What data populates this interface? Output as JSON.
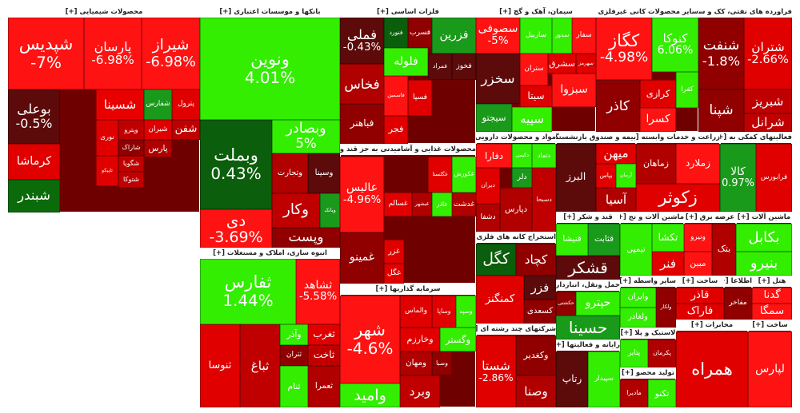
{
  "sectors": [
    {
      "title": "محصولات شیمیایی [+]",
      "tiles": [
        {
          "name": "شپدیس",
          "change": "-7%",
          "color": "#ff1212"
        },
        {
          "name": "پارسان",
          "change": "-6.98%",
          "color": "#ff1212"
        },
        {
          "name": "شیراز",
          "change": "-6.98%",
          "color": "#ff1212"
        },
        {
          "name": "بوعلی",
          "change": "-0.5%",
          "color": "#5c0a0a"
        },
        {
          "name": "کرماشا",
          "color": "#e00000"
        },
        {
          "name": "شبندر",
          "color": "#0b6b0b"
        },
        {
          "name": "شسینا",
          "color": "#e80000"
        },
        {
          "name": "شفارس",
          "color": "#1a9a1a"
        },
        {
          "name": "پترول",
          "color": "#e00000"
        },
        {
          "name": "نوری",
          "color": "#e00000"
        },
        {
          "name": "وپترو",
          "color": "#c00000"
        },
        {
          "name": "شیران",
          "color": "#e00000"
        },
        {
          "name": "شفن",
          "color": "#c00000"
        },
        {
          "name": "شاراک",
          "color": "#900000"
        },
        {
          "name": "پارس",
          "color": "#b00000"
        },
        {
          "name": "تاپیکو",
          "color": "#e00000"
        },
        {
          "name": "شگویا",
          "color": "#c00000"
        },
        {
          "name": "شتوکا",
          "color": "#c00000"
        }
      ]
    },
    {
      "title": "بانکها و موسسات اعتباری [+]",
      "tiles": [
        {
          "name": "ونوین",
          "change": "4.01%",
          "color": "#33ee00"
        },
        {
          "name": "وبملت",
          "change": "0.43%",
          "color": "#0b5e0b"
        },
        {
          "name": "وبصادر",
          "change": "5%",
          "color": "#33ee00"
        },
        {
          "name": "وتجارت",
          "color": "#b00000"
        },
        {
          "name": "وسینا",
          "color": "#5c0a0a"
        },
        {
          "name": "دی",
          "change": "-3.69%",
          "color": "#ff1212"
        },
        {
          "name": "وکار",
          "color": "#c00000"
        },
        {
          "name": "وبانک",
          "color": "#1a9a1a"
        },
        {
          "name": "وپست",
          "color": "#900000"
        }
      ]
    },
    {
      "title": "انبوه سازی، املاک و مستغلات [+]",
      "tiles": [
        {
          "name": "ثفارس",
          "change": "1.44%",
          "color": "#33ee00"
        },
        {
          "name": "ثشاهد",
          "change": "-5.58%",
          "color": "#ff1212"
        },
        {
          "name": "ثنوسا",
          "color": "#e00000"
        },
        {
          "name": "ثباغ",
          "color": "#c00000"
        },
        {
          "name": "وآذر",
          "color": "#33ee00"
        },
        {
          "name": "ثغرب",
          "color": "#e00000"
        },
        {
          "name": "ثتران",
          "color": "#900000"
        },
        {
          "name": "ثاخت",
          "color": "#c00000"
        },
        {
          "name": "ثنام",
          "color": "#33ee00"
        },
        {
          "name": "ثعمرا",
          "color": "#b00000"
        }
      ]
    },
    {
      "title": "فلزات اساسی [+]",
      "tiles": [
        {
          "name": "فملی",
          "change": "-0.43%",
          "color": "#5c0a0a"
        },
        {
          "name": "فنورد",
          "color": "#0b5e0b"
        },
        {
          "name": "فسرب",
          "color": "#900000"
        },
        {
          "name": "فزرین",
          "color": "#1a9a1a"
        },
        {
          "name": "فلوله",
          "color": "#33ee00"
        },
        {
          "name": "فمراد",
          "color": "#5c0a0a"
        },
        {
          "name": "فخوز",
          "color": "#5c0a0a"
        },
        {
          "name": "فخاس",
          "color": "#b00000"
        },
        {
          "name": "فباهنر",
          "color": "#900000"
        },
        {
          "name": "فاسمین",
          "color": "#ff1212"
        },
        {
          "name": "فسپا",
          "color": "#e00000"
        },
        {
          "name": "فجر",
          "color": "#e00000"
        }
      ]
    },
    {
      "title": "محصولات غذایی و آشامیدنی به جز قند و شکر [+]",
      "tiles": [
        {
          "name": "عالیس",
          "change": "-4.96%",
          "color": "#ff1212"
        },
        {
          "name": "غمینو",
          "color": "#900000"
        },
        {
          "name": "غگلستا",
          "color": "#e00000"
        },
        {
          "name": "غکورش",
          "color": "#33ee00"
        },
        {
          "name": "غسالم",
          "color": "#e00000"
        },
        {
          "name": "غبشهر",
          "color": "#b00000"
        },
        {
          "name": "غاذر",
          "color": "#33ee00"
        },
        {
          "name": "غدشت",
          "color": "#b00000"
        },
        {
          "name": "غزر",
          "color": "#e00000"
        },
        {
          "name": "غگل",
          "color": "#e00000"
        }
      ]
    },
    {
      "title": "سرمایه گذاریها [+]",
      "tiles": [
        {
          "name": "شهر",
          "change": "-4.6%",
          "color": "#ff1212"
        },
        {
          "name": "وامید",
          "color": "#33ee00"
        },
        {
          "name": "والماس",
          "color": "#e00000"
        },
        {
          "name": "وساپا",
          "color": "#e00000"
        },
        {
          "name": "وسپه",
          "color": "#33ee00"
        },
        {
          "name": "وخارزم",
          "color": "#e00000"
        },
        {
          "name": "وگستر",
          "color": "#33ee00"
        },
        {
          "name": "ومهان",
          "color": "#b00000"
        },
        {
          "name": "وصبا",
          "color": "#900000"
        },
        {
          "name": "وبرد",
          "color": "#c00000"
        }
      ]
    },
    {
      "title": "سیمان، آهک و گچ [+]",
      "tiles": [
        {
          "name": "سصوفی",
          "change": "-5%",
          "color": "#ff1212"
        },
        {
          "name": "ساربیل",
          "color": "#33ee00"
        },
        {
          "name": "سدور",
          "color": "#33ee00"
        },
        {
          "name": "سفار",
          "color": "#ff1212"
        },
        {
          "name": "ستران",
          "color": "#ff1212"
        },
        {
          "name": "سشرق",
          "color": "#e00000"
        },
        {
          "name": "سهرمز",
          "color": "#e00000"
        },
        {
          "name": "سیتا",
          "color": "#e00000"
        },
        {
          "name": "سخزر",
          "color": "#5c0a0a"
        },
        {
          "name": "سبزوا",
          "color": "#ff1212"
        },
        {
          "name": "سیجتو",
          "color": "#1a9a1a"
        },
        {
          "name": "سپیه",
          "color": "#33ee00"
        }
      ]
    },
    {
      "title": "سایر محصولات کانی غیرفلزی [+]",
      "tiles": [
        {
          "name": "کگاز",
          "change": "-4.98%",
          "color": "#ff1212"
        },
        {
          "name": "کنوکا",
          "change": "6.06%",
          "color": "#33ee00"
        },
        {
          "name": "کاذر",
          "color": "#900000"
        },
        {
          "name": "کرازی",
          "color": "#e00000"
        },
        {
          "name": "کفرا",
          "color": "#33ee00"
        },
        {
          "name": "کسرا",
          "color": "#ff1212"
        }
      ]
    },
    {
      "title": "فراورده های نفتی، کک و سو [+]",
      "tiles": [
        {
          "name": "شنفت",
          "change": "-1.8%",
          "color": "#900000"
        },
        {
          "name": "شتران",
          "change": "-2.66%",
          "color": "#e00000"
        },
        {
          "name": "شپنا",
          "color": "#900000"
        },
        {
          "name": "شبریز",
          "color": "#c00000"
        },
        {
          "name": "شرانل",
          "color": "#c00000"
        }
      ]
    },
    {
      "title": "مواد و محصولات دارویی [+]",
      "tiles": [
        {
          "name": "دفارا",
          "color": "#ff1212"
        },
        {
          "name": "دکیمی",
          "color": "#33ee00"
        },
        {
          "name": "دتماد",
          "color": "#33ee00"
        },
        {
          "name": "دلر",
          "color": "#1a9a1a"
        },
        {
          "name": "دیران",
          "color": "#e00000"
        },
        {
          "name": "دشفا",
          "color": "#b00000"
        },
        {
          "name": "دپارس",
          "color": "#b00000"
        },
        {
          "name": "دسبحا",
          "color": "#c00000"
        }
      ]
    },
    {
      "title": "بیمه و صندوق بازنشستگی [+]",
      "tiles": [
        {
          "name": "البرز",
          "color": "#5c0a0a"
        },
        {
          "name": "میهن",
          "color": "#e00000"
        },
        {
          "name": "بپاس",
          "color": "#e00000"
        },
        {
          "name": "آرمان",
          "color": "#33ee00"
        },
        {
          "name": "آسیا",
          "color": "#b00000"
        }
      ]
    },
    {
      "title": "زراعت و خدمات وابسته [+]",
      "tiles": [
        {
          "name": "زماهان",
          "color": "#b00000"
        },
        {
          "name": "زملارد",
          "color": "#ff1212"
        },
        {
          "name": "زکوثر",
          "color": "#e00000"
        }
      ]
    },
    {
      "title": "فعالیتهای کمکی به [+]",
      "tiles": [
        {
          "name": "کالا",
          "change": "0.97%",
          "color": "#1a9a1a"
        },
        {
          "name": "فرابورس",
          "color": "#e00000"
        }
      ]
    },
    {
      "title": "استخراج کانه های فلزی [+]",
      "tiles": [
        {
          "name": "کچاد",
          "color": "#900000"
        },
        {
          "name": "کگل",
          "color": "#0b5e0b"
        },
        {
          "name": "کمنگنز",
          "color": "#e00000"
        },
        {
          "name": "فزر",
          "color": "#5c0a0a"
        },
        {
          "name": "کسعدی",
          "color": "#900000"
        }
      ]
    },
    {
      "title": "قند و شکر [+]",
      "tiles": [
        {
          "name": "قنیشا",
          "color": "#33ee00"
        },
        {
          "name": "قثابت",
          "color": "#1a9a1a"
        },
        {
          "name": "قشکر",
          "color": "#5c0a0a"
        }
      ]
    },
    {
      "title": "ماشین آلات و تج [+]",
      "tiles": [
        {
          "name": "تپمپی",
          "color": "#33ee00"
        },
        {
          "name": "تکشا",
          "color": "#33ee00"
        },
        {
          "name": "فنر",
          "color": "#e00000"
        }
      ]
    },
    {
      "title": "عرضه برق [+]",
      "tiles": [
        {
          "name": "ونیرو",
          "color": "#ff1212"
        },
        {
          "name": "مبین",
          "color": "#ff1212"
        },
        {
          "name": "بتک",
          "color": "#b00000"
        }
      ]
    },
    {
      "title": "ماشین آلات [+]",
      "tiles": [
        {
          "name": "بکابل",
          "color": "#33ee00"
        },
        {
          "name": "بنیرو",
          "color": "#33ee00"
        }
      ]
    },
    {
      "title": "حمل ونقل، انباردار [+]",
      "tiles": [
        {
          "name": "حکشتی",
          "color": "#900000"
        },
        {
          "name": "حپترو",
          "color": "#33ee00"
        },
        {
          "name": "حسینا",
          "color": "#1a9a1a"
        }
      ]
    },
    {
      "title": "سایر واسطه [+]",
      "tiles": [
        {
          "name": "وایران",
          "color": "#33ee00"
        },
        {
          "name": "ولغادر",
          "color": "#33ee00"
        },
        {
          "name": "ولکار",
          "color": "#900000"
        }
      ]
    },
    {
      "title": "ساخت [+]",
      "tiles": [
        {
          "name": "قاذر",
          "color": "#e00000"
        },
        {
          "name": "فاراک",
          "color": "#e00000"
        }
      ]
    },
    {
      "title": "اطلاعا [+]",
      "tiles": [
        {
          "name": "مفاخر",
          "color": "#900000"
        }
      ]
    },
    {
      "title": "هتل [+]",
      "tiles": [
        {
          "name": "گدنا",
          "color": "#ff1212"
        },
        {
          "name": "سمگا",
          "color": "#ff1212"
        }
      ]
    },
    {
      "title": "شرکتهای چند رشته ای [+]",
      "tiles": [
        {
          "name": "شستا",
          "change": "-2.86%",
          "color": "#e00000"
        },
        {
          "name": "وکغدیر",
          "color": "#900000"
        },
        {
          "name": "وصنا",
          "color": "#b00000"
        }
      ]
    },
    {
      "title": "رایانه و فعالیتها [+]",
      "tiles": [
        {
          "name": "رتاپ",
          "color": "#5c0a0a"
        },
        {
          "name": "سپیدار",
          "color": "#33ee00"
        }
      ]
    },
    {
      "title": "لاستیک و پلا [+]",
      "tiles": [
        {
          "name": "پتایر",
          "color": "#33ee00"
        },
        {
          "name": "پکرمان",
          "color": "#b00000"
        }
      ]
    },
    {
      "title": "تولید محصو [+]",
      "tiles": [
        {
          "name": "مادیرا",
          "color": "#b00000"
        },
        {
          "name": "تکنو",
          "color": "#33ee00"
        }
      ]
    },
    {
      "title": "مخابرات [+]",
      "tiles": [
        {
          "name": "همراه",
          "color": "#e00000"
        }
      ]
    },
    {
      "title": "ساخت [+]",
      "tiles": [
        {
          "name": "لپارس",
          "color": "#ff1212"
        }
      ]
    }
  ]
}
